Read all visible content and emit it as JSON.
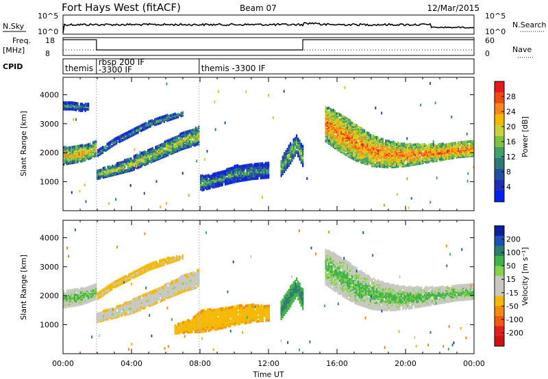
{
  "header": {
    "title": "Fort Hays West (fitACF)",
    "beam": "Beam 07",
    "date": "12/Mar/2015"
  },
  "top_panels": {
    "nsky_label": "N.Sky",
    "nsky_ticks": [
      "10^5",
      "10^0"
    ],
    "nsearch_label": "N.Search",
    "freq_label_1": "Freq.",
    "freq_label_2": "[MHz]",
    "freq_ticks": [
      "18",
      "8"
    ],
    "nave_ticks": [
      "60",
      "0"
    ],
    "nave_label": "Nave",
    "cpid_label": "CPID",
    "cpid_segments": [
      {
        "line1": "themis",
        "line2": "",
        "start_hour": 0.0,
        "end_hour": 1.95
      },
      {
        "line1": "rbsp  200 IF",
        "line2": "-3300 IF",
        "start_hour": 1.95,
        "end_hour": 7.95
      },
      {
        "line1": "themis  -3300 IF",
        "line2": "",
        "start_hour": 7.95,
        "end_hour": 24.0
      }
    ],
    "freq_steps": [
      {
        "start_hour": 0.0,
        "end_hour": 1.95,
        "level": "high"
      },
      {
        "start_hour": 1.95,
        "end_hour": 14.0,
        "level": "low"
      },
      {
        "start_hour": 14.0,
        "end_hour": 24.0,
        "level": "high"
      }
    ]
  },
  "axes": {
    "y_label": "Slant Range [km]",
    "y_ticks": [
      "1000",
      "2000",
      "3000",
      "4000"
    ],
    "x_label": "Time UT",
    "x_ticks": [
      "00:00",
      "04:00",
      "08:00",
      "12:00",
      "16:00",
      "20:00",
      "00:00"
    ]
  },
  "colorbars": {
    "power": {
      "title": "Power [dB]",
      "ticks": [
        "28",
        "24",
        "20",
        "16",
        "12",
        "8",
        "4"
      ],
      "colors": [
        "#e41a1c",
        "#f04a10",
        "#f7861b",
        "#f5b800",
        "#c9d43a",
        "#7fc241",
        "#3fa06b",
        "#2b7a78",
        "#22509e",
        "#1f2eb4",
        "#0022ee"
      ]
    },
    "velocity": {
      "title": "Velocity [m s⁻¹]",
      "ticks": [
        "200",
        "100",
        "50",
        "15",
        "-15",
        "-50",
        "-100",
        "-200"
      ],
      "colors": [
        "#0b1f9e",
        "#1d4fb8",
        "#2c7c6a",
        "#40b24a",
        "#86d34b",
        "#c8c8c0",
        "#c8c8c0",
        "#f5b800",
        "#f08a10",
        "#f05a10",
        "#e12020",
        "#d01010"
      ]
    }
  },
  "chart_data": {
    "type": "heatmap",
    "x_unit": "hours UT",
    "xlim": [
      0,
      24
    ],
    "ylim": [
      0,
      4600
    ],
    "power_regions": [
      {
        "x": [
          0.0,
          0.5,
          1.0,
          1.5,
          1.9
        ],
        "y_low": [
          1600,
          1650,
          1700,
          1800,
          1900
        ],
        "y_high": [
          2200,
          2200,
          2250,
          2300,
          2400
        ],
        "db": 16
      },
      {
        "x": [
          1.95,
          3.0,
          4.0,
          5.0,
          6.0,
          7.0,
          7.9
        ],
        "y_low": [
          1100,
          1250,
          1400,
          1650,
          1900,
          2150,
          2300
        ],
        "y_high": [
          1400,
          1600,
          1850,
          2100,
          2400,
          2700,
          2900
        ],
        "db": 12
      },
      {
        "x": [
          2.0,
          3.0,
          4.0,
          5.0,
          6.0,
          7.0
        ],
        "y_low": [
          1900,
          2300,
          2600,
          2900,
          3100,
          3300
        ],
        "y_high": [
          2100,
          2500,
          2800,
          3100,
          3300,
          3400
        ],
        "db": 6
      },
      {
        "x": [
          8.0,
          9.0,
          10.0,
          11.0,
          12.0
        ],
        "y_low": [
          700,
          850,
          1000,
          1100,
          1150
        ],
        "y_high": [
          1200,
          1300,
          1550,
          1600,
          1650
        ],
        "db": 6
      },
      {
        "x": [
          12.7,
          13.2,
          13.6,
          14.0
        ],
        "y_low": [
          1200,
          1600,
          2000,
          1500
        ],
        "y_high": [
          1800,
          2300,
          2600,
          2200
        ],
        "db": 10
      },
      {
        "x": [
          15.3,
          16.0,
          17.0,
          18.0,
          19.0,
          20.0,
          21.0,
          22.0,
          23.0,
          24.0
        ],
        "y_low": [
          2400,
          2100,
          1750,
          1550,
          1500,
          1550,
          1650,
          1750,
          1850,
          1900
        ],
        "y_high": [
          3600,
          3400,
          3000,
          2600,
          2400,
          2300,
          2300,
          2300,
          2350,
          2400
        ],
        "db": 20
      },
      {
        "x": [
          0.0,
          0.5,
          1.0,
          1.5
        ],
        "y_low": [
          3500,
          3500,
          3450,
          3450
        ],
        "y_high": [
          3750,
          3750,
          3700,
          3700
        ],
        "db": 6
      }
    ],
    "velocity_regions": [
      {
        "x": [
          0.0,
          0.5,
          1.0,
          1.5,
          1.9
        ],
        "y_low": [
          1600,
          1650,
          1700,
          1800,
          1900
        ],
        "y_high": [
          2200,
          2200,
          2250,
          2300,
          2400
        ],
        "ms": 0
      },
      {
        "x": [
          1.95,
          3.0,
          4.0,
          5.0,
          6.0,
          7.0,
          7.9
        ],
        "y_low": [
          1100,
          1250,
          1400,
          1650,
          1900,
          2150,
          2300
        ],
        "y_high": [
          1400,
          1600,
          1850,
          2100,
          2400,
          2700,
          2900
        ],
        "ms": -20
      },
      {
        "x": [
          2.0,
          3.0,
          4.0,
          5.0,
          6.0,
          7.0
        ],
        "y_low": [
          1900,
          2300,
          2600,
          2900,
          3100,
          3300
        ],
        "y_high": [
          2100,
          2500,
          2800,
          3100,
          3300,
          3400
        ],
        "ms": -40
      },
      {
        "x": [
          6.5,
          7.5,
          8.0,
          9.0,
          10.0,
          11.0,
          12.0
        ],
        "y_low": [
          700,
          750,
          750,
          850,
          1000,
          1100,
          1150
        ],
        "y_high": [
          1000,
          1200,
          1500,
          1550,
          1650,
          1700,
          1650
        ],
        "ms": -60
      },
      {
        "x": [
          12.7,
          13.2,
          13.6,
          14.0
        ],
        "y_low": [
          1200,
          1600,
          2000,
          1500
        ],
        "y_high": [
          1800,
          2300,
          2600,
          2200
        ],
        "ms": 30
      },
      {
        "x": [
          15.3,
          16.0,
          17.0,
          18.0,
          19.0,
          20.0,
          21.0,
          22.0,
          23.0,
          24.0
        ],
        "y_low": [
          2400,
          2100,
          1750,
          1550,
          1500,
          1550,
          1650,
          1750,
          1850,
          1900
        ],
        "y_high": [
          3600,
          3400,
          3000,
          2600,
          2400,
          2300,
          2300,
          2300,
          2350,
          2400
        ],
        "ms": 0
      }
    ]
  }
}
